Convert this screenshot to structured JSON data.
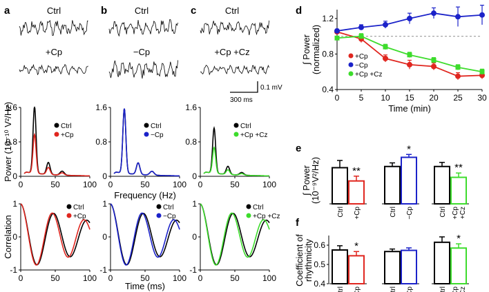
{
  "colors": {
    "ctrl": "#000000",
    "cp": "#e0261f",
    "neg_cp": "#1b22c9",
    "cp_cz": "#3ddc2c",
    "ref": "#999999"
  },
  "panels": {
    "a": {
      "letter": "a",
      "trace_top": "Ctrl",
      "trace_bottom": "+Cp",
      "legend_ctrl": "Ctrl",
      "legend_drug": "+Cp"
    },
    "b": {
      "letter": "b",
      "trace_top": "Ctrl",
      "trace_bottom": "−Cp",
      "legend_ctrl": "Ctrl",
      "legend_drug": "−Cp"
    },
    "c": {
      "letter": "c",
      "trace_top": "Ctrl",
      "trace_bottom": "+Cp +Cz",
      "legend_ctrl": "Ctrl",
      "legend_drug": "+Cp +Cz"
    },
    "d": {
      "letter": "d"
    },
    "e": {
      "letter": "e"
    },
    "f": {
      "letter": "f"
    }
  },
  "scalebar": {
    "v_label": "0.1 mV",
    "h_label": "300 ms"
  },
  "chart_data": [
    {
      "id": "power-spectra",
      "type": "line",
      "ylabel": "Power (10⁻¹⁰ V²/Hz)",
      "xlabel": "Frequency (Hz)",
      "xlim": [
        0,
        100
      ],
      "ylim": [
        0,
        1.6
      ],
      "xticks": [
        0,
        50,
        100
      ],
      "yticks": [
        0,
        0.8,
        1.6
      ],
      "ytick_labels": [
        "0",
        "0.8",
        "1.6"
      ],
      "peak_freq_hz": 20,
      "panels": [
        {
          "panel": "a",
          "ctrl_peak": 1.55,
          "drug_peak": 0.9
        },
        {
          "panel": "b",
          "ctrl_peak": 1.5,
          "drug_peak": 1.5
        },
        {
          "panel": "c",
          "ctrl_peak": 1.05,
          "drug_peak": 0.6
        }
      ]
    },
    {
      "id": "autocorrelation",
      "type": "line",
      "ylabel": "Correlation",
      "xlabel": "Time (ms)",
      "xlim": [
        0,
        100
      ],
      "ylim": [
        -1,
        1
      ],
      "xticks": [
        0,
        50,
        100
      ],
      "yticks": [
        -1,
        0,
        1
      ],
      "ytick_labels": [
        "-1",
        "0",
        "1"
      ],
      "period_ms": 48
    },
    {
      "id": "d",
      "type": "line",
      "title": "",
      "ylabel": "∫ Power (normalized)",
      "xlabel": "Time (min)",
      "x": [
        0,
        5,
        10,
        15,
        20,
        25,
        30
      ],
      "xlim": [
        0,
        30
      ],
      "ylim": [
        0.4,
        1.3
      ],
      "yticks": [
        0.4,
        0.8,
        1.2
      ],
      "ytick_labels": [
        "0.4",
        "0.8",
        "1.2"
      ],
      "reference_line": 1.0,
      "series": [
        {
          "name": "+Cp",
          "color": "#e0261f",
          "values": [
            1.05,
            0.97,
            0.75,
            0.68,
            0.66,
            0.55,
            0.56
          ],
          "err": [
            0.02,
            0.04,
            0.04,
            0.05,
            0.04,
            0.04,
            0.04
          ]
        },
        {
          "name": "−Cp",
          "color": "#1b22c9",
          "values": [
            1.06,
            1.1,
            1.13,
            1.2,
            1.26,
            1.22,
            1.24
          ],
          "err": [
            0.02,
            0.03,
            0.04,
            0.06,
            0.06,
            0.11,
            0.11
          ]
        },
        {
          "name": "+Cp +Cz",
          "color": "#3ddc2c",
          "values": [
            0.98,
            1.0,
            0.88,
            0.79,
            0.73,
            0.65,
            0.6
          ],
          "err": [
            0.02,
            0.03,
            0.03,
            0.03,
            0.03,
            0.03,
            0.03
          ]
        }
      ]
    },
    {
      "id": "e",
      "type": "bar",
      "ylabel": "∫ Power (10⁻⁹V²/Hz)",
      "ylim": [
        0,
        2
      ],
      "groups": [
        {
          "categories": [
            "Ctrl",
            "+Cp"
          ],
          "colors": [
            "#000000",
            "#e0261f"
          ],
          "values": [
            1.5,
            0.95
          ],
          "err": [
            0.3,
            0.2
          ],
          "sig": "**"
        },
        {
          "categories": [
            "Ctrl",
            "−Cp"
          ],
          "colors": [
            "#000000",
            "#1b22c9"
          ],
          "values": [
            1.55,
            1.93
          ],
          "err": [
            0.15,
            0.12
          ],
          "sig": "*"
        },
        {
          "categories": [
            "Ctrl",
            "+Cp +Cz"
          ],
          "colors": [
            "#000000",
            "#3ddc2c"
          ],
          "values": [
            1.55,
            1.1
          ],
          "err": [
            0.17,
            0.18
          ],
          "sig": "**"
        }
      ]
    },
    {
      "id": "f",
      "type": "bar",
      "ylabel": "Coefficient of rhythmicity",
      "ylim": [
        0.4,
        0.65
      ],
      "yticks": [
        0.4,
        0.5,
        0.6
      ],
      "ytick_labels": [
        "0.4",
        "0.5",
        "0.6"
      ],
      "groups": [
        {
          "categories": [
            "Ctrl",
            "+Cp"
          ],
          "colors": [
            "#000000",
            "#e0261f"
          ],
          "values": [
            0.575,
            0.545
          ],
          "err": [
            0.022,
            0.022
          ],
          "sig": "*"
        },
        {
          "categories": [
            "Ctrl",
            "−Cp"
          ],
          "colors": [
            "#000000",
            "#1b22c9"
          ],
          "values": [
            0.567,
            0.573
          ],
          "err": [
            0.013,
            0.013
          ],
          "sig": ""
        },
        {
          "categories": [
            "Ctrl",
            "+Cp +Cz"
          ],
          "colors": [
            "#000000",
            "#3ddc2c"
          ],
          "values": [
            0.615,
            0.585
          ],
          "err": [
            0.028,
            0.022
          ],
          "sig": "*"
        }
      ]
    }
  ]
}
